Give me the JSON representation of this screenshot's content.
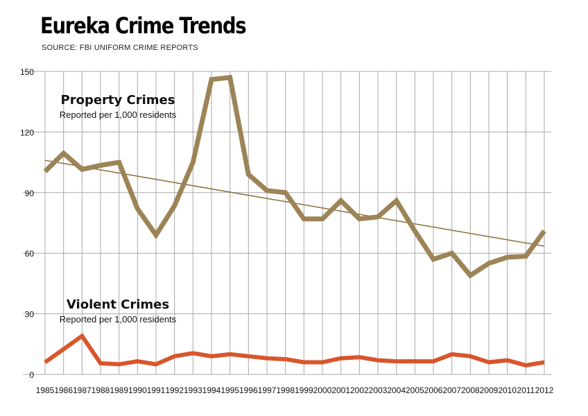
{
  "header": {
    "title": "Eureka Crime Trends",
    "source": "SOURCE: FBI UNIFORM CRIME REPORTS"
  },
  "annotations": {
    "property_title": "Property Crimes",
    "property_sub": "Reported per 1,000 residents",
    "violent_title": "Violent Crimes",
    "violent_sub": "Reported per 1,000 residents"
  },
  "colors": {
    "property": "#9c8457",
    "violent": "#d9552b",
    "trend": "#8a6d3b",
    "grid": "#a8a8a8"
  },
  "chart_data": {
    "type": "line",
    "title": "Eureka Crime Trends",
    "xlabel": "",
    "ylabel": "",
    "ylim": [
      0,
      150
    ],
    "yticks": [
      0,
      30,
      60,
      90,
      120,
      150
    ],
    "grid": true,
    "x": [
      "1985",
      "1986",
      "1987",
      "1988",
      "1989",
      "1990",
      "1991",
      "1992",
      "1993",
      "1994",
      "1995",
      "1996",
      "1997",
      "1998",
      "1999",
      "2000",
      "2001",
      "2002",
      "2003",
      "2004",
      "2005",
      "2006",
      "2007",
      "2008",
      "2009",
      "2010",
      "2011",
      "2012"
    ],
    "series": [
      {
        "name": "Property Crimes",
        "values": [
          100.5,
          109.5,
          101.5,
          103.5,
          105,
          82,
          69,
          83.5,
          105,
          146,
          147,
          99,
          91,
          90,
          77,
          77,
          86,
          77,
          78,
          86,
          71,
          57,
          60,
          49,
          55,
          58,
          58.5,
          71
        ]
      },
      {
        "name": "Violent Crimes",
        "values": [
          6,
          12.5,
          19,
          5.5,
          5,
          6.5,
          5,
          9,
          10.5,
          9,
          10,
          9,
          8,
          7.5,
          6,
          6,
          8,
          8.5,
          7,
          6.5,
          6.5,
          6.5,
          10,
          9,
          6,
          7,
          4.5,
          6
        ]
      }
    ],
    "trendline": {
      "series": "Property Crimes",
      "start": 106,
      "end": 63.5
    }
  }
}
